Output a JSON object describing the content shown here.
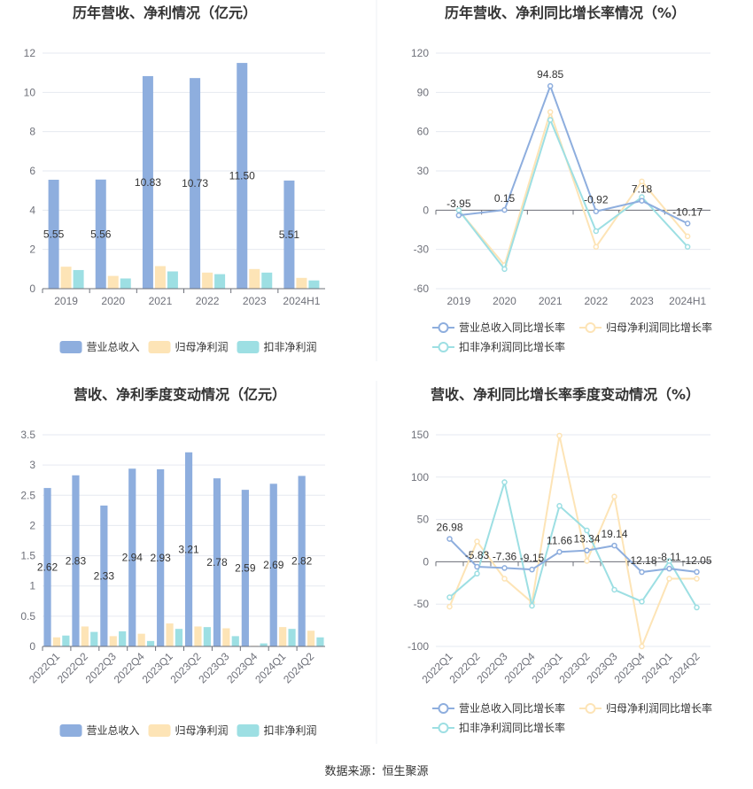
{
  "colors": {
    "revenue": "#8eaede",
    "parent_profit": "#fde4b6",
    "deducted_profit": "#9ddfe3",
    "rev_growth": "#8eaede",
    "parent_growth": "#fde4b6",
    "deducted_growth": "#9ddfe3"
  },
  "source": "数据来源：恒生聚源",
  "chart_data": [
    {
      "id": "annual-bar",
      "type": "bar",
      "title": "历年营收、净利情况（亿元）",
      "categories": [
        "2019",
        "2020",
        "2021",
        "2022",
        "2023",
        "2024H1"
      ],
      "ylim": [
        0,
        12
      ],
      "yticks": [
        0,
        2,
        4,
        6,
        8,
        10,
        12
      ],
      "series": [
        {
          "name": "营业总收入",
          "values": [
            5.55,
            5.56,
            10.83,
            10.73,
            11.5,
            5.51
          ],
          "labels": [
            "5.55",
            "5.56",
            "10.83",
            "10.73",
            "11.50",
            "5.51"
          ]
        },
        {
          "name": "归母净利润",
          "values": [
            1.12,
            0.65,
            1.15,
            0.82,
            1.0,
            0.55
          ]
        },
        {
          "name": "扣非净利润",
          "values": [
            0.95,
            0.52,
            0.88,
            0.74,
            0.82,
            0.42
          ]
        }
      ]
    },
    {
      "id": "annual-line",
      "type": "line",
      "title": "历年营收、净利同比增长率情况（%）",
      "categories": [
        "2019",
        "2020",
        "2021",
        "2022",
        "2023",
        "2024H1"
      ],
      "ylim": [
        -60,
        120
      ],
      "yticks": [
        -60,
        -30,
        0,
        30,
        60,
        90,
        120
      ],
      "series": [
        {
          "name": "营业总收入同比增长率",
          "values": [
            -3.95,
            0.15,
            94.85,
            -0.92,
            7.18,
            -10.17
          ],
          "labels": [
            "-3.95",
            "0.15",
            "94.85",
            "-0.92",
            "7.18",
            "-10.17"
          ]
        },
        {
          "name": "归母净利润同比增长率",
          "values": [
            0,
            -42,
            75,
            -28,
            22,
            -20
          ]
        },
        {
          "name": "扣非净利润同比增长率",
          "values": [
            0,
            -45,
            69,
            -16,
            10,
            -28
          ]
        }
      ]
    },
    {
      "id": "quarter-bar",
      "type": "bar",
      "title": "营收、净利季度变动情况（亿元）",
      "categories": [
        "2022Q1",
        "2022Q2",
        "2022Q3",
        "2022Q4",
        "2023Q1",
        "2023Q2",
        "2023Q3",
        "2023Q4",
        "2024Q1",
        "2024Q2"
      ],
      "ylim": [
        0,
        3.5
      ],
      "yticks": [
        0,
        0.5,
        1,
        1.5,
        2,
        2.5,
        3,
        3.5
      ],
      "series": [
        {
          "name": "营业总收入",
          "values": [
            2.62,
            2.83,
            2.33,
            2.94,
            2.93,
            3.21,
            2.78,
            2.59,
            2.69,
            2.82
          ],
          "labels": [
            "2.62",
            "2.83",
            "2.33",
            "2.94",
            "2.93",
            "3.21",
            "2.78",
            "2.59",
            "2.69",
            "2.82"
          ]
        },
        {
          "name": "归母净利润",
          "values": [
            0.15,
            0.33,
            0.17,
            0.21,
            0.38,
            0.33,
            0.3,
            0.01,
            0.32,
            0.26
          ]
        },
        {
          "name": "扣非净利润",
          "values": [
            0.18,
            0.24,
            0.25,
            0.09,
            0.29,
            0.32,
            0.17,
            0.05,
            0.29,
            0.15
          ]
        }
      ]
    },
    {
      "id": "quarter-line",
      "type": "line",
      "title": "营收、净利同比增长率季度变动情况（%）",
      "categories": [
        "2022Q1",
        "2022Q2",
        "2022Q3",
        "2022Q4",
        "2023Q1",
        "2023Q2",
        "2023Q3",
        "2023Q4",
        "2024Q1",
        "2024Q2"
      ],
      "ylim": [
        -100,
        150
      ],
      "yticks": [
        -100,
        -50,
        0,
        50,
        100,
        150
      ],
      "series": [
        {
          "name": "营业总收入同比增长率",
          "values": [
            26.98,
            -5.83,
            -7.36,
            -9.15,
            11.66,
            13.34,
            19.14,
            -12.18,
            -8.11,
            -12.05
          ],
          "labels": [
            "26.98",
            "-5.83",
            "-7.36",
            "-9.15",
            "11.66",
            "13.34",
            "19.14",
            "-12.18",
            "-8.11",
            "-12.05"
          ]
        },
        {
          "name": "归母净利润同比增长率",
          "values": [
            -53,
            24,
            -20,
            -48,
            149,
            1,
            77,
            -100,
            -20,
            -20
          ]
        },
        {
          "name": "扣非净利润同比增长率",
          "values": [
            -42,
            -14,
            94,
            -52,
            66,
            37,
            -33,
            -47,
            1,
            -54
          ]
        }
      ]
    }
  ]
}
